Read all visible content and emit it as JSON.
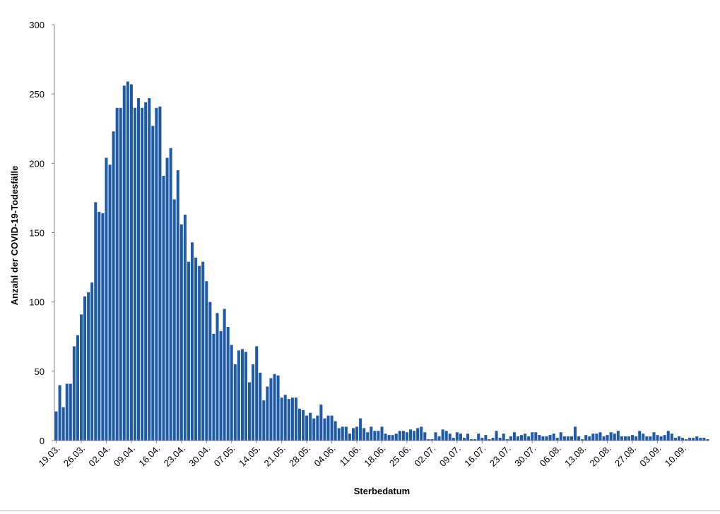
{
  "chart_data": {
    "type": "bar",
    "xlabel": "Sterbedatum",
    "ylabel": "Anzahl der COVID-19-Todesfälle",
    "ylim": [
      0,
      300
    ],
    "yticks": [
      0,
      50,
      100,
      150,
      200,
      250,
      300
    ],
    "grid": false,
    "bar_color": "#1f5aa6",
    "x_tick_labels": [
      "19.03.",
      "26.03.",
      "02.04.",
      "09.04.",
      "16.04.",
      "23.04.",
      "30.04.",
      "07.05.",
      "14.05.",
      "21.05.",
      "28.05.",
      "04.06.",
      "11.06.",
      "18.06.",
      "25.06.",
      "02.07.",
      "09.07.",
      "16.07.",
      "23.07.",
      "30.07.",
      "06.08.",
      "13.08.",
      "20.08.",
      "27.08.",
      "03.09.",
      "10.09."
    ],
    "start_label": "19.03.",
    "values": [
      21,
      40,
      24,
      41,
      41,
      68,
      76,
      91,
      104,
      107,
      114,
      172,
      165,
      164,
      204,
      199,
      223,
      240,
      240,
      256,
      259,
      257,
      240,
      247,
      240,
      244,
      247,
      227,
      240,
      241,
      191,
      204,
      211,
      174,
      195,
      156,
      163,
      129,
      143,
      132,
      126,
      129,
      115,
      100,
      77,
      92,
      79,
      95,
      82,
      69,
      55,
      65,
      66,
      64,
      42,
      55,
      68,
      49,
      29,
      39,
      45,
      48,
      47,
      31,
      33,
      30,
      31,
      31,
      23,
      22,
      18,
      20,
      16,
      18,
      26,
      16,
      18,
      18,
      14,
      9,
      10,
      10,
      5,
      9,
      10,
      16,
      9,
      6,
      10,
      7,
      7,
      10,
      5,
      4,
      4,
      5,
      7,
      7,
      6,
      8,
      7,
      9,
      10,
      6,
      1,
      1,
      6,
      3,
      8,
      7,
      5,
      2,
      6,
      5,
      2,
      5,
      1,
      1,
      5,
      2,
      4,
      1,
      2,
      7,
      2,
      5,
      1,
      3,
      6,
      3,
      4,
      5,
      3,
      6,
      6,
      4,
      3,
      3,
      4,
      5,
      2,
      6,
      3,
      3,
      3,
      10,
      3,
      1,
      4,
      3,
      5,
      5,
      6,
      3,
      4,
      6,
      5,
      7,
      3,
      3,
      3,
      4,
      3,
      7,
      5,
      3,
      3,
      6,
      4,
      3,
      4,
      7,
      5,
      2,
      3,
      2,
      1,
      2,
      2,
      3,
      2,
      2,
      1
    ]
  }
}
